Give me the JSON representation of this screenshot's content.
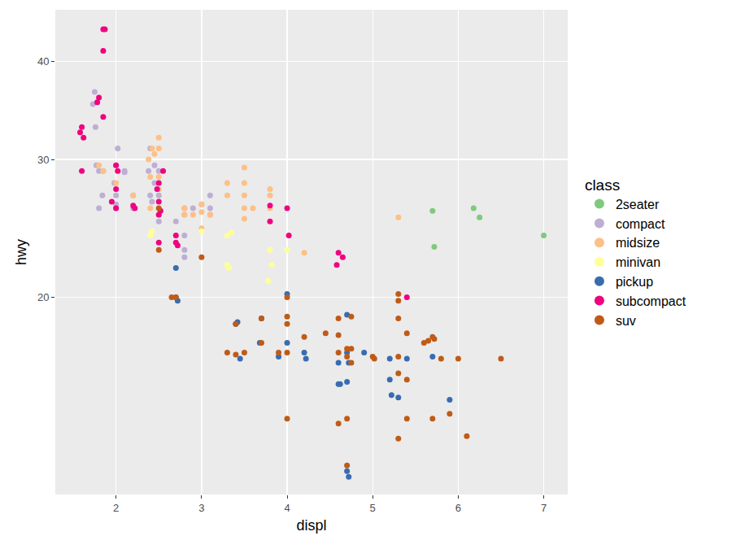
{
  "chart_data": {
    "type": "scatter",
    "x_label": "displ",
    "y_label": "hwy",
    "legend_title": "class",
    "legend": "right",
    "grid": true,
    "log": "y",
    "marker": "circle",
    "xlim": [
      1.29,
      7.28
    ],
    "xticks": [
      2,
      3,
      4,
      5,
      6,
      7
    ],
    "ylim": [
      11.2,
      46.6
    ],
    "yticks": [
      20,
      30,
      40
    ],
    "series": [
      {
        "name": "2seater",
        "color": "#7FC97F",
        "x": [
          5.7,
          5.72,
          6.18,
          6.25,
          7.0
        ],
        "values": [
          25.8,
          23.2,
          26.0,
          25.3,
          24.0
        ]
      },
      {
        "name": "compact",
        "color": "#BEAED4",
        "x": [
          1.75,
          1.78,
          1.73,
          1.76,
          1.77,
          1.8,
          1.85,
          1.8,
          1.84,
          2.0,
          2.02,
          1.98,
          2.0,
          2.0,
          2.1,
          2.2,
          2.2,
          2.4,
          2.38,
          2.45,
          2.45,
          2.5,
          2.5,
          2.5,
          2.4,
          2.42,
          2.7,
          2.8,
          2.8,
          2.8,
          2.8,
          2.9,
          3.0,
          3.1,
          3.1,
          3.1,
          2.0,
          2.5,
          2.1,
          2.8
        ],
        "values": [
          36.6,
          35.5,
          35.3,
          33.0,
          29.5,
          29.0,
          29.0,
          26.0,
          27.0,
          29.5,
          31.0,
          28.0,
          27.0,
          26.0,
          29.0,
          27.0,
          26.0,
          31.0,
          29.0,
          29.5,
          28.0,
          29.0,
          27.0,
          25.5,
          27.0,
          26.5,
          25.0,
          25.5,
          24.0,
          23.0,
          26.0,
          26.0,
          26.3,
          26.0,
          27.0,
          25.5,
          26.3,
          25.0,
          28.9,
          22.5
        ]
      },
      {
        "name": "midsize",
        "color": "#FDC086",
        "x": [
          1.8,
          1.85,
          2.0,
          2.2,
          2.38,
          2.42,
          2.5,
          2.5,
          2.45,
          2.4,
          2.4,
          2.5,
          2.5,
          2.8,
          2.8,
          2.9,
          3.0,
          3.0,
          3.1,
          3.3,
          3.3,
          3.5,
          3.5,
          3.5,
          3.5,
          3.5,
          3.6,
          3.8,
          3.8,
          3.8,
          4.2,
          5.3,
          3.0,
          2.5
        ],
        "values": [
          29.5,
          29.0,
          28.0,
          27.0,
          30.0,
          31.0,
          31.0,
          32.0,
          30.5,
          28.5,
          26.0,
          27.5,
          25.5,
          26.0,
          25.5,
          25.5,
          25.7,
          26.3,
          25.5,
          27.0,
          28.0,
          29.3,
          28.0,
          27.0,
          26.0,
          25.2,
          26.0,
          27.5,
          27.0,
          26.0,
          22.8,
          25.3,
          24.5,
          28.5
        ]
      },
      {
        "name": "minivan",
        "color": "#FFFF99",
        "x": [
          2.4,
          2.42,
          3.0,
          3.3,
          3.35,
          3.3,
          3.32,
          3.8,
          3.82,
          3.78,
          4.0
        ],
        "values": [
          24.0,
          24.3,
          24.3,
          24.0,
          24.2,
          22.0,
          21.8,
          23.0,
          22.0,
          21.0,
          23.0
        ]
      },
      {
        "name": "pickup",
        "color": "#386CB0",
        "x": [
          2.7,
          2.7,
          2.72,
          3.4,
          3.42,
          3.7,
          3.68,
          3.9,
          4.0,
          4.0,
          4.2,
          4.22,
          3.45,
          4.6,
          4.6,
          4.7,
          4.7,
          4.7,
          4.72,
          4.7,
          4.72,
          4.9,
          5.2,
          5.2,
          5.22,
          5.3,
          5.4,
          5.7,
          5.9,
          4.62
        ],
        "values": [
          21.8,
          20.0,
          19.8,
          18.5,
          18.6,
          18.8,
          17.5,
          16.8,
          20.2,
          17.5,
          17.0,
          16.7,
          16.7,
          16.5,
          15.5,
          19.0,
          17.0,
          15.6,
          16.5,
          12.0,
          11.8,
          17.0,
          16.7,
          15.7,
          15.0,
          14.9,
          16.7,
          16.8,
          14.8,
          15.5
        ]
      },
      {
        "name": "subcompact",
        "color": "#F0027F",
        "x": [
          1.6,
          1.58,
          1.62,
          1.6,
          1.8,
          1.78,
          1.85,
          1.87,
          1.85,
          1.85,
          2.0,
          2.02,
          2.0,
          1.95,
          2.0,
          2.2,
          2.22,
          2.5,
          2.48,
          2.5,
          2.52,
          2.55,
          2.5,
          2.7,
          2.7,
          2.72,
          3.8,
          3.8,
          4.0,
          4.02,
          4.6,
          4.58,
          4.65,
          5.4,
          2.5
        ],
        "values": [
          33.0,
          32.5,
          32.0,
          29.0,
          36.0,
          35.5,
          44.0,
          44.0,
          41.3,
          34.0,
          29.5,
          29.0,
          27.5,
          26.5,
          26.0,
          26.2,
          26.0,
          28.0,
          27.5,
          26.5,
          25.8,
          29.0,
          25.5,
          24.0,
          23.5,
          23.3,
          26.2,
          25.0,
          26.0,
          24.0,
          22.8,
          22.0,
          22.5,
          20.0,
          23.5
        ]
      },
      {
        "name": "suv",
        "color": "#BF5B17",
        "x": [
          2.5,
          2.5,
          2.7,
          2.65,
          3.0,
          3.3,
          3.4,
          3.4,
          3.5,
          3.7,
          3.7,
          3.9,
          4.0,
          4.0,
          4.0,
          4.0,
          4.0,
          4.2,
          4.45,
          4.6,
          4.6,
          4.6,
          4.6,
          4.7,
          4.7,
          4.7,
          4.7,
          4.75,
          4.75,
          4.75,
          5.0,
          5.02,
          5.3,
          5.3,
          5.3,
          5.3,
          5.3,
          5.3,
          5.4,
          5.4,
          5.4,
          5.6,
          5.65,
          5.7,
          5.72,
          5.8,
          5.7,
          5.9,
          6.0,
          6.1,
          6.5
        ],
        "values": [
          23.0,
          26.0,
          20.0,
          20.0,
          22.5,
          17.0,
          18.5,
          16.9,
          17.0,
          18.8,
          17.5,
          17.0,
          18.9,
          18.5,
          20.0,
          17.0,
          14.0,
          17.8,
          18.0,
          17.9,
          18.8,
          17.0,
          13.8,
          17.2,
          16.8,
          14.0,
          12.2,
          18.9,
          16.5,
          17.2,
          16.8,
          16.7,
          20.2,
          19.8,
          18.8,
          16.8,
          16.0,
          13.2,
          18.0,
          15.7,
          14.0,
          17.5,
          17.6,
          17.8,
          17.7,
          16.7,
          14.0,
          14.2,
          16.7,
          13.3,
          16.7
        ]
      }
    ]
  }
}
